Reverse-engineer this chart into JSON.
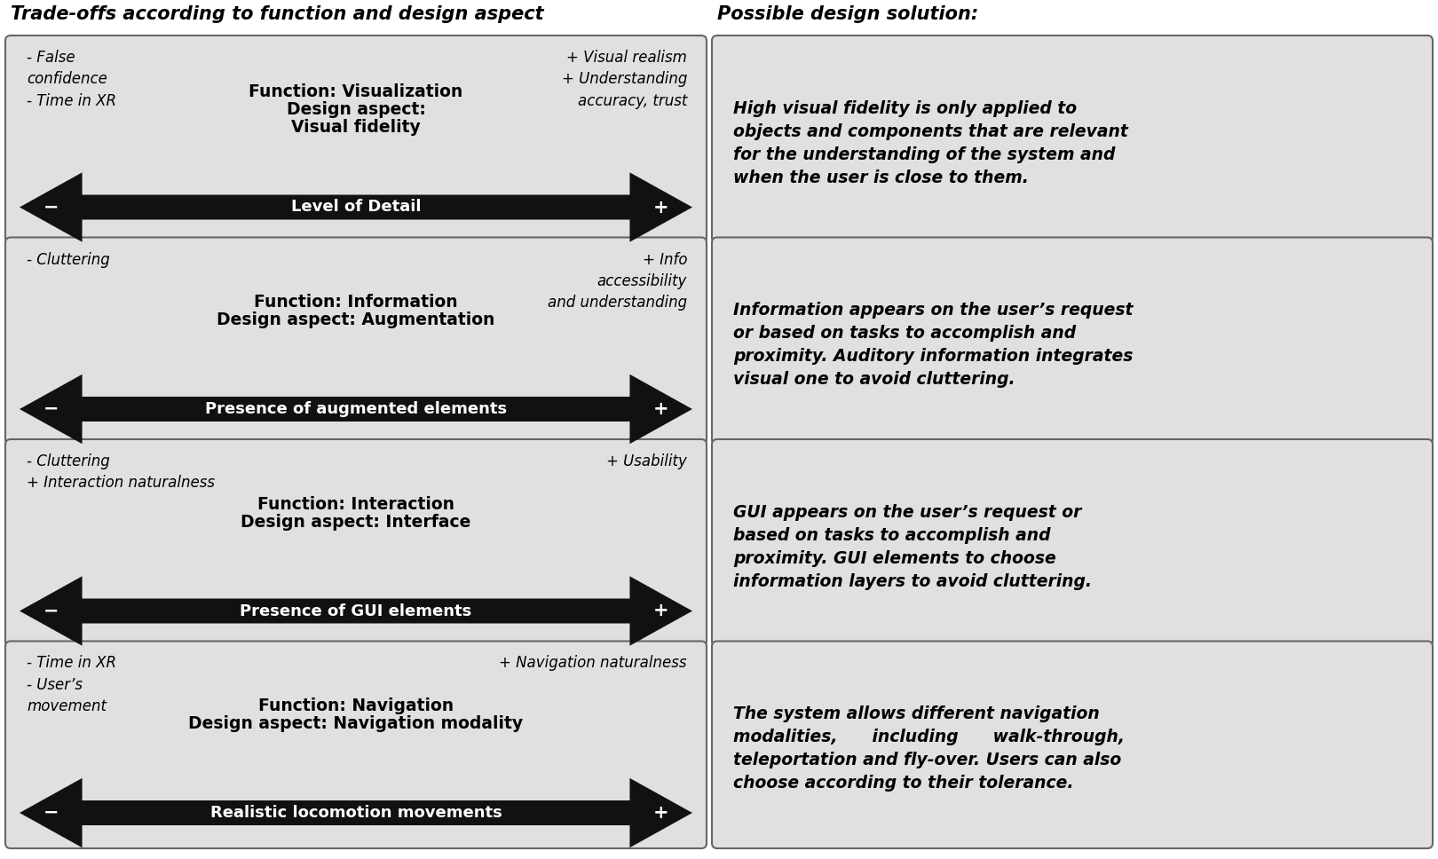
{
  "title_left": "Trade-offs according to function and design aspect",
  "title_right": "Possible design solution:",
  "bg_color": "#ffffff",
  "box_bg": "#e0e0e0",
  "box_border": "#666666",
  "arrow_color": "#111111",
  "rows": [
    {
      "func_line1": "Function: Visualization",
      "func_line2": "Design aspect:",
      "func_line3": "Visual fidelity",
      "arrow_label": "Level of Detail",
      "left_text": "- False\nconfidence\n- Time in XR",
      "right_text": "+ Visual realism\n+ Understanding\naccuracy, trust",
      "solution_lines": [
        "High visual fidelity is only applied to",
        "objects and components that are relevant",
        "for the understanding of the system and",
        "when the user is close to them."
      ]
    },
    {
      "func_line1": "Function: Information",
      "func_line2": "Design aspect: Augmentation",
      "func_line3": "",
      "arrow_label": "Presence of augmented elements",
      "left_text": "- Cluttering",
      "right_text": "+ Info\naccessibility\nand understanding",
      "solution_lines": [
        "Information appears on the user’s request",
        "or based on tasks to accomplish and",
        "proximity. Auditory information integrates",
        "visual one to avoid cluttering."
      ]
    },
    {
      "func_line1": "Function: Interaction",
      "func_line2": "Design aspect: Interface",
      "func_line3": "",
      "arrow_label": "Presence of GUI elements",
      "left_text": "- Cluttering\n+ Interaction naturalness",
      "right_text": "+ Usability",
      "solution_lines": [
        "GUI appears on the user’s request or",
        "based on tasks to accomplish and",
        "proximity. GUI elements to choose",
        "information layers to avoid cluttering."
      ]
    },
    {
      "func_line1": "Function: Navigation",
      "func_line2": "Design aspect: Navigation modality",
      "func_line3": "",
      "arrow_label": "Realistic locomotion movements",
      "left_text": "- Time in XR\n- User’s\nmovement",
      "right_text": "+ Navigation naturalness",
      "solution_lines": [
        "The system allows different navigation",
        "modalities,      including      walk-through,",
        "teleportation and fly-over. Users can also",
        "choose according to their tolerance."
      ]
    }
  ]
}
